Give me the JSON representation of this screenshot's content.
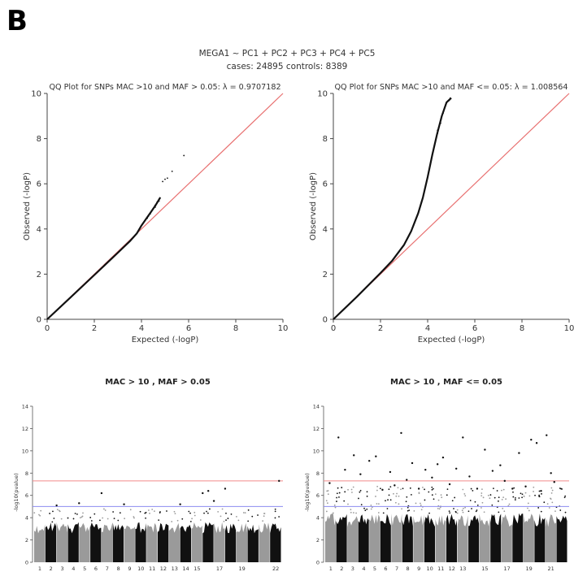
{
  "panel_label": "B",
  "header": {
    "model": "MEGA1 ~ PC1 + PC2 + PC3 + PC4 + PC5",
    "counts": "cases:  24895    controls: 8389"
  },
  "colors": {
    "identity_line": "#e87070",
    "genome_wide_line": "#f08a8a",
    "suggestive_line": "#8c8cf0",
    "points_dark": "#111111",
    "points_grey": "#9a9a9a"
  },
  "chart_data": [
    {
      "type": "scatter",
      "title": "QQ Plot for SNPs MAC >10 and MAF > 0.05:  λ = 0.9707182",
      "xlabel": "Expected (-logP)",
      "ylabel": "Observed (-logP)",
      "xlim": [
        0,
        10
      ],
      "ylim": [
        0,
        10
      ],
      "xticks": [
        "0",
        "2",
        "4",
        "6",
        "8",
        "10"
      ],
      "yticks": [
        "0",
        "2",
        "4",
        "6",
        "8",
        "10"
      ],
      "reference_line": [
        [
          0,
          0
        ],
        [
          10,
          10
        ]
      ],
      "curve": [
        [
          0,
          0
        ],
        [
          1,
          0.98
        ],
        [
          2,
          1.96
        ],
        [
          3,
          2.95
        ],
        [
          3.5,
          3.45
        ],
        [
          3.8,
          3.8
        ],
        [
          4.0,
          4.15
        ],
        [
          4.2,
          4.45
        ],
        [
          4.4,
          4.75
        ],
        [
          4.6,
          5.05
        ],
        [
          4.8,
          5.4
        ]
      ],
      "outliers": [
        [
          4.9,
          6.1
        ],
        [
          5.0,
          6.2
        ],
        [
          5.1,
          6.25
        ],
        [
          5.3,
          6.55
        ],
        [
          5.8,
          7.25
        ]
      ]
    },
    {
      "type": "scatter",
      "title": "QQ Plot for SNPs MAC >10 and MAF <= 0.05:  λ = 1.008564",
      "xlabel": "Expected (-logP)",
      "ylabel": "Observed (-logP)",
      "xlim": [
        0,
        10
      ],
      "ylim": [
        0,
        10
      ],
      "xticks": [
        "0",
        "2",
        "4",
        "6",
        "8",
        "10"
      ],
      "yticks": [
        "0",
        "2",
        "4",
        "6",
        "8",
        "10"
      ],
      "reference_line": [
        [
          0,
          0
        ],
        [
          10,
          10
        ]
      ],
      "curve": [
        [
          0,
          0
        ],
        [
          1,
          1.0
        ],
        [
          2,
          2.05
        ],
        [
          2.5,
          2.6
        ],
        [
          3.0,
          3.3
        ],
        [
          3.3,
          3.9
        ],
        [
          3.6,
          4.7
        ],
        [
          3.8,
          5.4
        ],
        [
          4.0,
          6.3
        ],
        [
          4.2,
          7.3
        ],
        [
          4.4,
          8.2
        ],
        [
          4.6,
          9.0
        ],
        [
          4.8,
          9.6
        ],
        [
          5.0,
          9.8
        ]
      ]
    },
    {
      "type": "scatter",
      "title": "MAC > 10 , MAF > 0.05",
      "xlabel": "",
      "ylabel": "-log10(pvalue)",
      "ylim": [
        0,
        14
      ],
      "yticks": [
        "0",
        "2",
        "4",
        "6",
        "8",
        "10",
        "12",
        "14"
      ],
      "chromosome_labels": [
        "1",
        "2",
        "3",
        "4",
        "5",
        "6",
        "7",
        "8",
        "9",
        "10",
        "11",
        "12",
        "13",
        "14",
        "15",
        "17",
        "19",
        "22"
      ],
      "genome_wide_threshold": 7.3,
      "suggestive_threshold": 5,
      "bulk_top": 3.6,
      "top_hits": [
        [
          2,
          5.1
        ],
        [
          4,
          5.3
        ],
        [
          6,
          6.2
        ],
        [
          8,
          5.2
        ],
        [
          13,
          5.2
        ],
        [
          15,
          6.2
        ],
        [
          15.5,
          6.4
        ],
        [
          16,
          5.5
        ],
        [
          17,
          6.6
        ],
        [
          21.8,
          7.3
        ]
      ]
    },
    {
      "type": "scatter",
      "title": "MAC > 10 , MAF <= 0.05",
      "xlabel": "",
      "ylabel": "-log10(pvalue)",
      "ylim": [
        0,
        14
      ],
      "yticks": [
        "0",
        "2",
        "4",
        "6",
        "8",
        "10",
        "12",
        "14"
      ],
      "chromosome_labels": [
        "1",
        "2",
        "3",
        "4",
        "5",
        "6",
        "7",
        "8",
        "9",
        "10",
        "11",
        "12",
        "13",
        "15",
        "17",
        "19",
        "21"
      ],
      "genome_wide_threshold": 7.3,
      "suggestive_threshold": 5,
      "bulk_top": 4.4,
      "top_hits": [
        [
          0.4,
          7.1
        ],
        [
          1.2,
          11.2
        ],
        [
          1.8,
          8.3
        ],
        [
          2.6,
          9.6
        ],
        [
          3.2,
          7.9
        ],
        [
          4.0,
          9.1
        ],
        [
          4.6,
          9.5
        ],
        [
          5.2,
          6.5
        ],
        [
          5.9,
          8.1
        ],
        [
          6.3,
          6.9
        ],
        [
          6.9,
          11.6
        ],
        [
          7.4,
          7.4
        ],
        [
          7.9,
          8.9
        ],
        [
          8.5,
          6.6
        ],
        [
          9.1,
          8.3
        ],
        [
          9.7,
          7.6
        ],
        [
          10.2,
          8.8
        ],
        [
          10.7,
          9.4
        ],
        [
          11.3,
          7.0
        ],
        [
          11.9,
          8.4
        ],
        [
          12.5,
          11.2
        ],
        [
          13.1,
          7.7
        ],
        [
          13.8,
          6.6
        ],
        [
          14.5,
          10.1
        ],
        [
          15.2,
          8.2
        ],
        [
          15.9,
          8.7
        ],
        [
          16.3,
          7.3
        ],
        [
          17.0,
          6.6
        ],
        [
          17.6,
          9.8
        ],
        [
          18.2,
          6.8
        ],
        [
          18.7,
          11.0
        ],
        [
          19.2,
          10.7
        ],
        [
          19.6,
          6.4
        ],
        [
          20.1,
          11.4
        ],
        [
          20.5,
          8.0
        ],
        [
          20.8,
          7.2
        ]
      ]
    }
  ]
}
